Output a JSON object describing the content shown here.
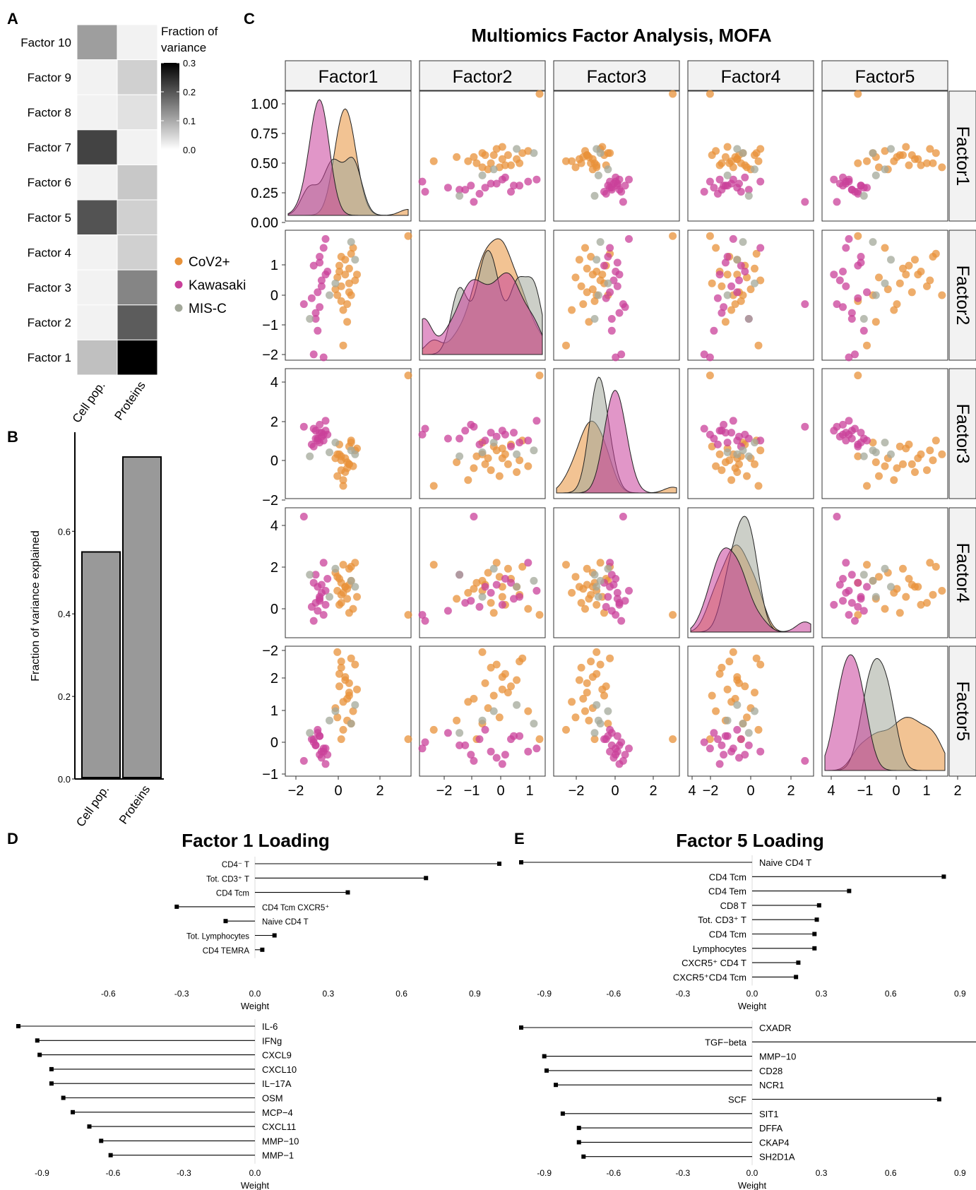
{
  "panels": {
    "a": "A",
    "b": "B",
    "c": "C",
    "d": "D",
    "e": "E"
  },
  "chart_data": [
    {
      "panel": "A",
      "type": "heatmap",
      "rows": [
        "Factor 10",
        "Factor 9",
        "Factor 8",
        "Factor 7",
        "Factor 6",
        "Factor 5",
        "Factor 4",
        "Factor 3",
        "Factor 2",
        "Factor 1"
      ],
      "columns": [
        "Cell pop.",
        "Proteins"
      ],
      "values": [
        [
          0.11,
          0.01
        ],
        [
          0.01,
          0.05
        ],
        [
          0.01,
          0.03
        ],
        [
          0.22,
          0.01
        ],
        [
          0.01,
          0.06
        ],
        [
          0.2,
          0.05
        ],
        [
          0.01,
          0.05
        ],
        [
          0.01,
          0.14
        ],
        [
          0.01,
          0.19
        ],
        [
          0.07,
          0.3
        ]
      ],
      "legend_title": "Fraction of variance",
      "legend_title_line1": "Fraction of",
      "legend_title_line2": "variance",
      "legend_ticks": [
        "0.3",
        "0.2",
        "0.1",
        "0.0"
      ],
      "scale": [
        0.0,
        0.3
      ]
    },
    {
      "panel": "B",
      "type": "bar",
      "categories": [
        "Cell pop.",
        "Proteins"
      ],
      "values": [
        0.55,
        0.78
      ],
      "ylabel": "Fraction of variance explained",
      "ylim": [
        0,
        0.8
      ],
      "yticks": [
        "0.0",
        "0.2",
        "0.4",
        "0.6"
      ],
      "color": "#999999"
    },
    {
      "panel": "C",
      "type": "scatter",
      "title": "Multiomics Factor Analysis, MOFA",
      "factors": [
        "Factor1",
        "Factor2",
        "Factor3",
        "Factor4",
        "Factor5"
      ],
      "legend": [
        {
          "name": "CoV2+",
          "color": "#E8923A"
        },
        {
          "name": "Kawasaki",
          "color": "#C9409A"
        },
        {
          "name": "MIS-C",
          "color": "#A3A89A"
        }
      ],
      "x_ticks": [
        [
          "−2",
          "0",
          "2"
        ],
        [
          "−2",
          "−1",
          "0",
          "1"
        ],
        [
          "−2",
          "0",
          "2",
          "4"
        ],
        [
          "−2",
          "0",
          "2",
          "4"
        ],
        [
          "−1",
          "0",
          "1",
          "2"
        ]
      ],
      "y_ticks": [
        [
          "1.00",
          "0.75",
          "0.50",
          "0.25",
          "0.00"
        ],
        [
          "1",
          "0",
          "−1",
          "−2"
        ],
        [
          "4",
          "2",
          "0",
          "−2"
        ],
        [
          "4",
          "2",
          "0",
          "−2"
        ],
        [
          "2",
          "1",
          "0",
          "−1"
        ]
      ],
      "ranges": [
        [
          -2.2,
          3.9
        ],
        [
          -2.4,
          1.8
        ],
        [
          -2.3,
          4.0
        ],
        [
          -2.1,
          4.1
        ],
        [
          -1.6,
          2.4
        ]
      ],
      "samples": {
        "CoV2+": [
          [
            1.0,
            1.1,
            0.5,
            1.3,
            2.1
          ],
          [
            0.7,
            0.4,
            -0.4,
            0.3,
            1.5
          ],
          [
            0.5,
            0.0,
            -1.0,
            -0.5,
            1.8
          ],
          [
            0.9,
            0.6,
            -0.7,
            1.2,
            1.0
          ],
          [
            0.3,
            -0.3,
            -0.2,
            0.1,
            2.3
          ],
          [
            0.6,
            -0.8,
            -1.5,
            0.0,
            0.7
          ],
          [
            1.2,
            0.2,
            0.0,
            1.5,
            1.9
          ],
          [
            0.8,
            -1.2,
            -0.6,
            -0.3,
            0.1
          ],
          [
            0.4,
            0.7,
            0.3,
            0.7,
            1.2
          ],
          [
            1.1,
            1.3,
            -0.8,
            -0.8,
            0.4
          ],
          [
            0.5,
            -0.5,
            -0.3,
            0.5,
            -0.5
          ],
          [
            0.9,
            0.1,
            0.2,
            -1.0,
            0.9
          ],
          [
            0.7,
            0.9,
            -1.1,
            0.3,
            1.4
          ],
          [
            0.2,
            -0.1,
            -0.4,
            1.0,
            0.5
          ],
          [
            1.3,
            0.4,
            0.1,
            -0.2,
            1.1
          ],
          [
            0.6,
            -2.0,
            -1.8,
            1.4,
            -0.2
          ],
          [
            0.8,
            -0.6,
            -0.9,
            0.2,
            0.8
          ],
          [
            0.4,
            0.5,
            -0.2,
            -0.6,
            1.6
          ],
          [
            1.0,
            -0.3,
            0.4,
            0.6,
            0.0
          ],
          [
            0.5,
            1.0,
            -0.5,
            -0.1,
            2.0
          ],
          [
            3.9,
            1.7,
            3.8,
            -1.1,
            -0.5
          ],
          [
            0.9,
            -0.2,
            -0.7,
            0.4,
            1.3
          ],
          [
            0.3,
            0.3,
            -1.3,
            0.8,
            0.2
          ]
        ],
        "Kawasaki": [
          [
            -0.6,
            0.8,
            0.9,
            -0.3,
            -0.4
          ],
          [
            -0.4,
            1.3,
            0.5,
            1.5,
            -0.9
          ],
          [
            -0.8,
            -0.9,
            1.0,
            -0.5,
            -0.7
          ],
          [
            -0.5,
            0.2,
            0.7,
            0.4,
            -1.1
          ],
          [
            -1.0,
            -0.4,
            0.3,
            -0.7,
            -0.5
          ],
          [
            -0.3,
            1.6,
            1.5,
            0.1,
            -0.8
          ],
          [
            -0.7,
            -1.5,
            0.6,
            -0.9,
            -0.3
          ],
          [
            -0.2,
            0.5,
            0.8,
            0.7,
            -1.0
          ],
          [
            -0.9,
            -2.3,
            1.1,
            -1.4,
            -0.6
          ],
          [
            -0.5,
            0.0,
            0.9,
            0.0,
            -0.9
          ],
          [
            -1.4,
            -0.6,
            1.2,
            3.8,
            -1.2
          ],
          [
            -0.6,
            1.0,
            0.4,
            -0.2,
            -0.4
          ],
          [
            -0.8,
            -1.1,
            0.6,
            0.9,
            -0.7
          ],
          [
            -0.3,
            0.4,
            1.0,
            -0.6,
            -1.3
          ],
          [
            -0.7,
            -0.2,
            0.5,
            0.3,
            -0.2
          ],
          [
            -0.4,
            -2.4,
            0.8,
            -1.1,
            -0.8
          ],
          [
            -0.9,
            0.7,
            0.2,
            0.5,
            -0.5
          ],
          [
            -0.6,
            -0.7,
            1.3,
            -0.4,
            -1.0
          ]
        ],
        "MIS-C": [
          [
            1.0,
            1.5,
            0.0,
            0.6,
            0.0
          ],
          [
            -1.1,
            -1.1,
            -0.3,
            0.9,
            -0.3
          ],
          [
            0.2,
            0.1,
            0.4,
            1.2,
            0.4
          ],
          [
            -0.1,
            -0.3,
            -0.1,
            -0.2,
            0.1
          ],
          [
            1.2,
            0.9,
            -0.2,
            0.3,
            0.6
          ]
        ]
      }
    },
    {
      "panel": "D",
      "type": "bar",
      "title": "Factor 1 Loading",
      "top": {
        "labels": [
          "CD4⁻ T",
          "Tot. CD3⁺ T",
          "CD4 Tcm",
          "CD4 Tcm CXCR5⁺",
          "Naive CD4 T",
          "Tot. Lymphocytes",
          "CD4 TEMRA"
        ],
        "values": [
          1.0,
          0.7,
          0.38,
          -0.32,
          -0.12,
          0.08,
          0.03
        ],
        "xticks": [
          "-0.6",
          "-0.3",
          "0.0",
          "0.3",
          "0.6",
          "0.9"
        ],
        "xlabel": "Weight"
      },
      "bottom": {
        "labels": [
          "IL-6",
          "IFNg",
          "CXCL9",
          "CXCL10",
          "IL−17A",
          "OSM",
          "MCP−4",
          "CXCL11",
          "MMP−10",
          "MMP−1"
        ],
        "values": [
          -1.0,
          -0.92,
          -0.91,
          -0.86,
          -0.86,
          -0.81,
          -0.77,
          -0.7,
          -0.65,
          -0.61
        ],
        "xticks": [
          "-0.9",
          "-0.6",
          "-0.3",
          "0.0"
        ],
        "xlabel": "Weight"
      }
    },
    {
      "panel": "E",
      "type": "bar",
      "title": "Factor 5 Loading",
      "top": {
        "labels": [
          "Naive CD4 T",
          "CD4 Tcm",
          "CD4 Tem",
          "CD8 T",
          "Tot. CD3⁺ T",
          "CD4 Tcm",
          "Lymphocytes",
          "CXCR5⁺ CD4 T",
          "CXCR5⁺CD4 Tcm"
        ],
        "values": [
          -1.0,
          0.83,
          0.42,
          0.29,
          0.28,
          0.27,
          0.27,
          0.2,
          0.19
        ],
        "xticks": [
          "-0.9",
          "-0.6",
          "-0.3",
          "0.0",
          "0.3",
          "0.6",
          "0.9"
        ],
        "xlabel": "Weight"
      },
      "bottom": {
        "labels": [
          "CXADR",
          "TGF−beta",
          "MMP−10",
          "CD28",
          "NCR1",
          "SCF",
          "SIT1",
          "DFFA",
          "CKAP4",
          "SH2D1A"
        ],
        "values": [
          -1.0,
          1.0,
          -0.9,
          -0.89,
          -0.85,
          0.81,
          -0.82,
          -0.75,
          -0.75,
          -0.73
        ],
        "xticks": [
          "-0.9",
          "-0.6",
          "-0.3",
          "0.0",
          "0.3",
          "0.6",
          "0.9"
        ],
        "xlabel": "Weight"
      }
    }
  ]
}
